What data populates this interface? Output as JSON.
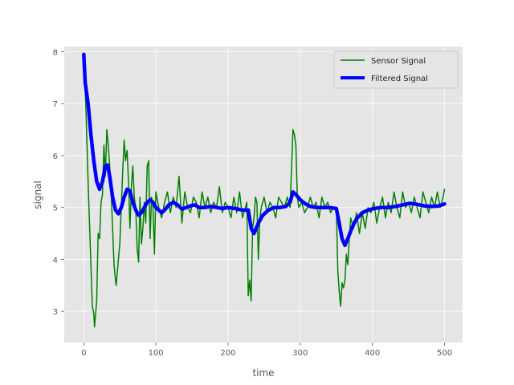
{
  "chart_data": {
    "type": "line",
    "title": "",
    "xlabel": "time",
    "ylabel": "signal",
    "xlim": [
      -27,
      525
    ],
    "ylim": [
      2.4,
      8.1
    ],
    "xticks": [
      0,
      100,
      200,
      300,
      400,
      500
    ],
    "yticks": [
      3,
      4,
      5,
      6,
      7,
      8
    ],
    "grid": true,
    "legend_position": "top-right",
    "series": [
      {
        "name": "Sensor Signal",
        "color": "#008000",
        "style": "thin",
        "points": [
          [
            0,
            7.8
          ],
          [
            3,
            6.9
          ],
          [
            6,
            5.5
          ],
          [
            9,
            4.3
          ],
          [
            12,
            3.1
          ],
          [
            14,
            2.95
          ],
          [
            15,
            2.7
          ],
          [
            18,
            3.2
          ],
          [
            20,
            4.5
          ],
          [
            22,
            4.4
          ],
          [
            24,
            5.1
          ],
          [
            26,
            5.25
          ],
          [
            28,
            6.2
          ],
          [
            30,
            5.6
          ],
          [
            32,
            6.5
          ],
          [
            34,
            6.2
          ],
          [
            36,
            5.8
          ],
          [
            38,
            5.3
          ],
          [
            40,
            4.6
          ],
          [
            42,
            3.9
          ],
          [
            44,
            3.6
          ],
          [
            45,
            3.5
          ],
          [
            48,
            4.0
          ],
          [
            50,
            4.3
          ],
          [
            52,
            5.0
          ],
          [
            54,
            5.7
          ],
          [
            56,
            6.3
          ],
          [
            58,
            5.9
          ],
          [
            60,
            6.1
          ],
          [
            62,
            5.5
          ],
          [
            64,
            4.6
          ],
          [
            66,
            5.4
          ],
          [
            68,
            5.8
          ],
          [
            70,
            5.2
          ],
          [
            72,
            5.0
          ],
          [
            74,
            4.2
          ],
          [
            76,
            3.95
          ],
          [
            78,
            5.2
          ],
          [
            80,
            4.3
          ],
          [
            82,
            4.6
          ],
          [
            84,
            5.1
          ],
          [
            86,
            4.7
          ],
          [
            88,
            5.8
          ],
          [
            90,
            5.9
          ],
          [
            92,
            4.4
          ],
          [
            94,
            5.2
          ],
          [
            96,
            5.0
          ],
          [
            98,
            4.1
          ],
          [
            100,
            5.3
          ],
          [
            104,
            5.0
          ],
          [
            108,
            4.8
          ],
          [
            112,
            5.1
          ],
          [
            116,
            5.3
          ],
          [
            120,
            4.9
          ],
          [
            124,
            5.2
          ],
          [
            128,
            5.0
          ],
          [
            132,
            5.6
          ],
          [
            136,
            4.7
          ],
          [
            140,
            5.3
          ],
          [
            144,
            5.0
          ],
          [
            148,
            4.9
          ],
          [
            152,
            5.2
          ],
          [
            156,
            5.1
          ],
          [
            160,
            4.8
          ],
          [
            164,
            5.3
          ],
          [
            168,
            5.0
          ],
          [
            172,
            5.2
          ],
          [
            176,
            4.9
          ],
          [
            180,
            5.1
          ],
          [
            184,
            5.0
          ],
          [
            188,
            5.4
          ],
          [
            192,
            4.9
          ],
          [
            196,
            5.1
          ],
          [
            200,
            5.0
          ],
          [
            204,
            4.8
          ],
          [
            208,
            5.2
          ],
          [
            212,
            4.9
          ],
          [
            216,
            5.3
          ],
          [
            220,
            4.8
          ],
          [
            224,
            5.0
          ],
          [
            226,
            5.1
          ],
          [
            228,
            3.3
          ],
          [
            230,
            3.6
          ],
          [
            232,
            3.2
          ],
          [
            234,
            4.6
          ],
          [
            236,
            4.8
          ],
          [
            238,
            5.2
          ],
          [
            240,
            5.1
          ],
          [
            242,
            4.0
          ],
          [
            244,
            4.8
          ],
          [
            246,
            5.0
          ],
          [
            250,
            5.2
          ],
          [
            254,
            4.9
          ],
          [
            258,
            5.1
          ],
          [
            262,
            5.0
          ],
          [
            266,
            4.8
          ],
          [
            270,
            5.2
          ],
          [
            274,
            5.1
          ],
          [
            278,
            5.0
          ],
          [
            282,
            5.2
          ],
          [
            286,
            5.0
          ],
          [
            290,
            6.5
          ],
          [
            292,
            6.4
          ],
          [
            294,
            6.2
          ],
          [
            296,
            5.2
          ],
          [
            298,
            5.0
          ],
          [
            302,
            5.1
          ],
          [
            306,
            4.9
          ],
          [
            310,
            5.0
          ],
          [
            314,
            5.2
          ],
          [
            318,
            5.0
          ],
          [
            322,
            5.1
          ],
          [
            326,
            4.8
          ],
          [
            330,
            5.2
          ],
          [
            334,
            5.0
          ],
          [
            338,
            5.1
          ],
          [
            342,
            4.9
          ],
          [
            346,
            5.0
          ],
          [
            350,
            5.0
          ],
          [
            352,
            3.8
          ],
          [
            354,
            3.4
          ],
          [
            356,
            3.1
          ],
          [
            358,
            3.55
          ],
          [
            360,
            3.45
          ],
          [
            362,
            3.6
          ],
          [
            364,
            4.1
          ],
          [
            366,
            3.9
          ],
          [
            368,
            4.4
          ],
          [
            370,
            4.8
          ],
          [
            374,
            4.6
          ],
          [
            378,
            4.9
          ],
          [
            382,
            4.5
          ],
          [
            386,
            4.9
          ],
          [
            390,
            4.6
          ],
          [
            394,
            5.0
          ],
          [
            398,
            4.9
          ],
          [
            402,
            5.1
          ],
          [
            406,
            4.7
          ],
          [
            410,
            5.0
          ],
          [
            414,
            5.2
          ],
          [
            418,
            4.8
          ],
          [
            422,
            5.1
          ],
          [
            426,
            4.9
          ],
          [
            430,
            5.3
          ],
          [
            434,
            5.0
          ],
          [
            438,
            4.8
          ],
          [
            442,
            5.3
          ],
          [
            446,
            5.0
          ],
          [
            450,
            5.1
          ],
          [
            454,
            4.9
          ],
          [
            458,
            5.2
          ],
          [
            462,
            5.0
          ],
          [
            466,
            4.8
          ],
          [
            470,
            5.3
          ],
          [
            474,
            5.1
          ],
          [
            478,
            4.9
          ],
          [
            482,
            5.2
          ],
          [
            486,
            5.0
          ],
          [
            490,
            5.3
          ],
          [
            494,
            5.0
          ],
          [
            498,
            5.2
          ],
          [
            500,
            5.35
          ]
        ]
      },
      {
        "name": "Filtered Signal",
        "color": "#0000ff",
        "style": "thick",
        "points": [
          [
            0,
            7.95
          ],
          [
            2,
            7.4
          ],
          [
            6,
            7.0
          ],
          [
            10,
            6.4
          ],
          [
            14,
            5.9
          ],
          [
            18,
            5.5
          ],
          [
            22,
            5.35
          ],
          [
            26,
            5.5
          ],
          [
            30,
            5.8
          ],
          [
            33,
            5.82
          ],
          [
            36,
            5.6
          ],
          [
            40,
            5.2
          ],
          [
            44,
            4.95
          ],
          [
            48,
            4.88
          ],
          [
            52,
            5.0
          ],
          [
            56,
            5.2
          ],
          [
            60,
            5.35
          ],
          [
            64,
            5.32
          ],
          [
            68,
            5.1
          ],
          [
            72,
            4.95
          ],
          [
            76,
            4.85
          ],
          [
            80,
            4.9
          ],
          [
            84,
            5.0
          ],
          [
            88,
            5.1
          ],
          [
            92,
            5.15
          ],
          [
            96,
            5.1
          ],
          [
            100,
            5.0
          ],
          [
            104,
            4.95
          ],
          [
            108,
            4.9
          ],
          [
            112,
            4.95
          ],
          [
            118,
            5.05
          ],
          [
            124,
            5.1
          ],
          [
            130,
            5.05
          ],
          [
            136,
            4.97
          ],
          [
            142,
            5.0
          ],
          [
            148,
            5.03
          ],
          [
            154,
            5.05
          ],
          [
            160,
            5.0
          ],
          [
            168,
            5.0
          ],
          [
            176,
            5.02
          ],
          [
            184,
            5.0
          ],
          [
            192,
            4.98
          ],
          [
            200,
            5.0
          ],
          [
            210,
            4.98
          ],
          [
            220,
            4.95
          ],
          [
            228,
            4.95
          ],
          [
            232,
            4.6
          ],
          [
            236,
            4.5
          ],
          [
            242,
            4.7
          ],
          [
            248,
            4.85
          ],
          [
            256,
            4.95
          ],
          [
            264,
            5.0
          ],
          [
            272,
            5.0
          ],
          [
            280,
            5.02
          ],
          [
            286,
            5.1
          ],
          [
            290,
            5.3
          ],
          [
            294,
            5.25
          ],
          [
            300,
            5.15
          ],
          [
            306,
            5.08
          ],
          [
            314,
            5.02
          ],
          [
            322,
            5.0
          ],
          [
            330,
            5.0
          ],
          [
            340,
            5.0
          ],
          [
            350,
            4.98
          ],
          [
            354,
            4.7
          ],
          [
            358,
            4.4
          ],
          [
            362,
            4.27
          ],
          [
            366,
            4.4
          ],
          [
            372,
            4.62
          ],
          [
            378,
            4.78
          ],
          [
            386,
            4.9
          ],
          [
            394,
            4.95
          ],
          [
            402,
            4.98
          ],
          [
            412,
            5.0
          ],
          [
            422,
            5.0
          ],
          [
            432,
            5.02
          ],
          [
            442,
            5.05
          ],
          [
            452,
            5.08
          ],
          [
            462,
            5.06
          ],
          [
            472,
            5.03
          ],
          [
            482,
            5.02
          ],
          [
            492,
            5.03
          ],
          [
            500,
            5.07
          ]
        ]
      }
    ]
  }
}
